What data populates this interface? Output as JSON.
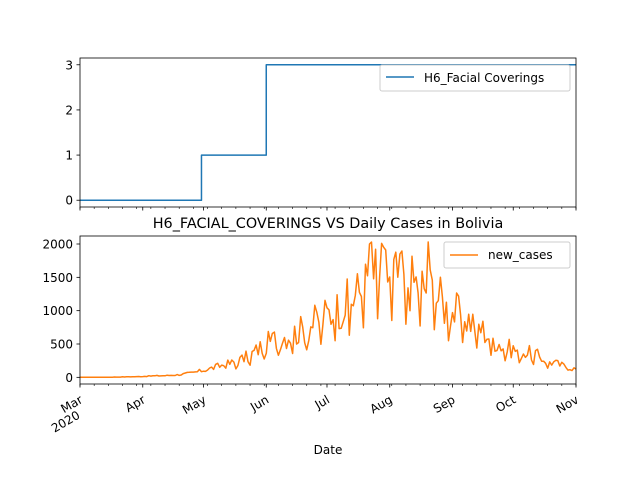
{
  "chart_data": [
    {
      "type": "line",
      "title": "",
      "xlabel": "",
      "ylabel": "",
      "ylim": [
        -0.15,
        3.15
      ],
      "yticks": [
        0,
        1,
        2,
        3
      ],
      "legend": "top-right",
      "grid": false,
      "series": [
        {
          "name": "H6_Facial Coverings",
          "color": "#1f77b4",
          "steps": [
            {
              "date": "2020-03-01",
              "value": 0
            },
            {
              "date": "2020-04-30",
              "value": 1
            },
            {
              "date": "2020-06-01",
              "value": 3
            },
            {
              "date": "2020-11-01",
              "value": 3
            }
          ]
        }
      ]
    },
    {
      "type": "line",
      "title": "H6_FACIAL_COVERINGS VS Daily Cases in Bolivia",
      "xlabel": "Date",
      "ylabel": "",
      "ylim": [
        -100,
        2120
      ],
      "yticks": [
        0,
        500,
        1000,
        1500,
        2000
      ],
      "legend": "top-right",
      "grid": false,
      "series": [
        {
          "name": "new_cases",
          "color": "#ff7f0e",
          "weekly": [
            {
              "date": "2020-03-01",
              "value": 0
            },
            {
              "date": "2020-03-15",
              "value": 2
            },
            {
              "date": "2020-03-29",
              "value": 10
            },
            {
              "date": "2020-04-05",
              "value": 20
            },
            {
              "date": "2020-04-12",
              "value": 25
            },
            {
              "date": "2020-04-19",
              "value": 40
            },
            {
              "date": "2020-04-26",
              "value": 70
            },
            {
              "date": "2020-05-03",
              "value": 120
            },
            {
              "date": "2020-05-10",
              "value": 180
            },
            {
              "date": "2020-05-17",
              "value": 230
            },
            {
              "date": "2020-05-24",
              "value": 330
            },
            {
              "date": "2020-05-31",
              "value": 500
            },
            {
              "date": "2020-06-07",
              "value": 600
            },
            {
              "date": "2020-06-14",
              "value": 650
            },
            {
              "date": "2020-06-21",
              "value": 750
            },
            {
              "date": "2020-06-28",
              "value": 900
            },
            {
              "date": "2020-07-05",
              "value": 1000
            },
            {
              "date": "2020-07-12",
              "value": 1150
            },
            {
              "date": "2020-07-19",
              "value": 1350
            },
            {
              "date": "2020-07-26",
              "value": 1600
            },
            {
              "date": "2020-08-02",
              "value": 1550
            },
            {
              "date": "2020-08-09",
              "value": 1450
            },
            {
              "date": "2020-08-16",
              "value": 1400
            },
            {
              "date": "2020-08-23",
              "value": 1300
            },
            {
              "date": "2020-08-30",
              "value": 1000
            },
            {
              "date": "2020-09-06",
              "value": 950
            },
            {
              "date": "2020-09-13",
              "value": 800
            },
            {
              "date": "2020-09-20",
              "value": 600
            },
            {
              "date": "2020-09-27",
              "value": 450
            },
            {
              "date": "2020-10-04",
              "value": 400
            },
            {
              "date": "2020-10-11",
              "value": 350
            },
            {
              "date": "2020-10-18",
              "value": 250
            },
            {
              "date": "2020-10-25",
              "value": 180
            },
            {
              "date": "2020-11-01",
              "value": 120
            }
          ],
          "peaks": [
            {
              "date": "2020-07-22",
              "value": 2000
            },
            {
              "date": "2020-07-23",
              "value": 2030
            },
            {
              "date": "2020-07-29",
              "value": 1950
            },
            {
              "date": "2020-08-06",
              "value": 1850
            },
            {
              "date": "2020-08-20",
              "value": 2030
            }
          ]
        }
      ],
      "xticks": [
        {
          "date": "2020-03-01",
          "label": "Mar",
          "sublabel": "2020"
        },
        {
          "date": "2020-04-01",
          "label": "Apr"
        },
        {
          "date": "2020-05-01",
          "label": "May"
        },
        {
          "date": "2020-06-01",
          "label": "Jun"
        },
        {
          "date": "2020-07-01",
          "label": "Jul"
        },
        {
          "date": "2020-08-01",
          "label": "Aug"
        },
        {
          "date": "2020-09-01",
          "label": "Sep"
        },
        {
          "date": "2020-10-01",
          "label": "Oct"
        },
        {
          "date": "2020-11-01",
          "label": "Nov"
        }
      ]
    }
  ]
}
